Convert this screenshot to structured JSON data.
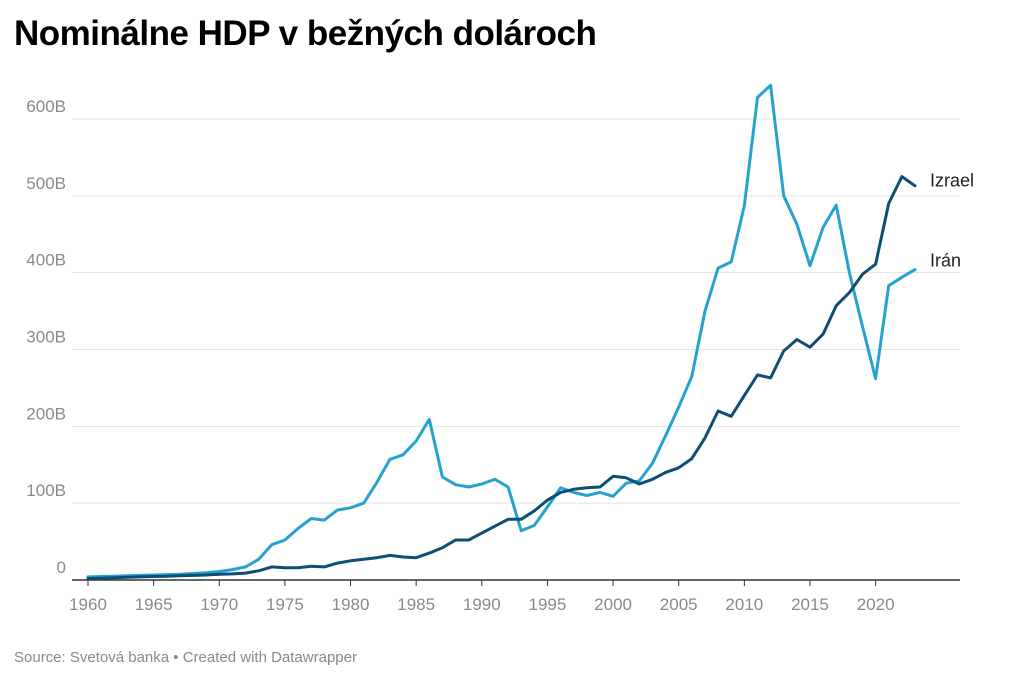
{
  "page": {
    "title": "Nominálne HDP v bežných dolároch",
    "footer": {
      "source": "Source: Svetová banka",
      "separator": "•",
      "credit": "Created with Datawrapper"
    }
  },
  "chart_data": {
    "type": "line",
    "title": "Nominálne HDP v bežných dolároch",
    "xlabel": "",
    "ylabel": "",
    "xlim": [
      1960,
      2023
    ],
    "ylim": [
      0,
      650
    ],
    "x_ticks": [
      1960,
      1965,
      1970,
      1975,
      1980,
      1985,
      1990,
      1995,
      2000,
      2005,
      2010,
      2015,
      2020
    ],
    "y_ticks": [
      0,
      100,
      200,
      300,
      400,
      500,
      600
    ],
    "y_tick_labels": [
      "0",
      "100B",
      "200B",
      "300B",
      "400B",
      "500B",
      "600B"
    ],
    "grid": "horizontal",
    "legend": "end-of-line labels",
    "colors": {
      "Izrael": "#0d4f73",
      "Irán": "#26a2d1"
    },
    "x": [
      1960,
      1961,
      1962,
      1963,
      1964,
      1965,
      1966,
      1967,
      1968,
      1969,
      1970,
      1971,
      1972,
      1973,
      1974,
      1975,
      1976,
      1977,
      1978,
      1979,
      1980,
      1981,
      1982,
      1983,
      1984,
      1985,
      1986,
      1987,
      1988,
      1989,
      1990,
      1991,
      1992,
      1993,
      1994,
      1995,
      1996,
      1997,
      1998,
      1999,
      2000,
      2001,
      2002,
      2003,
      2004,
      2005,
      2006,
      2007,
      2008,
      2009,
      2010,
      2011,
      2012,
      2013,
      2014,
      2015,
      2016,
      2017,
      2018,
      2019,
      2020,
      2021,
      2022,
      2023
    ],
    "series": [
      {
        "name": "Irán",
        "values": [
          4,
          4.5,
          5,
          5.5,
          6,
          6.5,
          7,
          7.5,
          8.5,
          9.5,
          11,
          13.5,
          17,
          27,
          46,
          52,
          67,
          80,
          78,
          91,
          94,
          100,
          127,
          157,
          163,
          181,
          209,
          134,
          124,
          121,
          125,
          131,
          121,
          64,
          71,
          95,
          120,
          114,
          110,
          114,
          109,
          126,
          129,
          152,
          188,
          225,
          265,
          350,
          406,
          414,
          487,
          628,
          644,
          500,
          463,
          409,
          459,
          488,
          400,
          330,
          262,
          383,
          394,
          404
        ]
      },
      {
        "name": "Izrael",
        "values": [
          2,
          2.5,
          3,
          3.5,
          4,
          4.5,
          5,
          5.5,
          6,
          6.5,
          7.5,
          8,
          9,
          12,
          17,
          16,
          16,
          18,
          17,
          22,
          25,
          27,
          29,
          32,
          30,
          29,
          35,
          42,
          52,
          52,
          61,
          70,
          79,
          79,
          90,
          104,
          114,
          118,
          120,
          121,
          135,
          133,
          125,
          131,
          140,
          146,
          158,
          185,
          220,
          213,
          240,
          267,
          263,
          298,
          313,
          303,
          320,
          357,
          374,
          398,
          411,
          490,
          525,
          513
        ]
      }
    ]
  }
}
